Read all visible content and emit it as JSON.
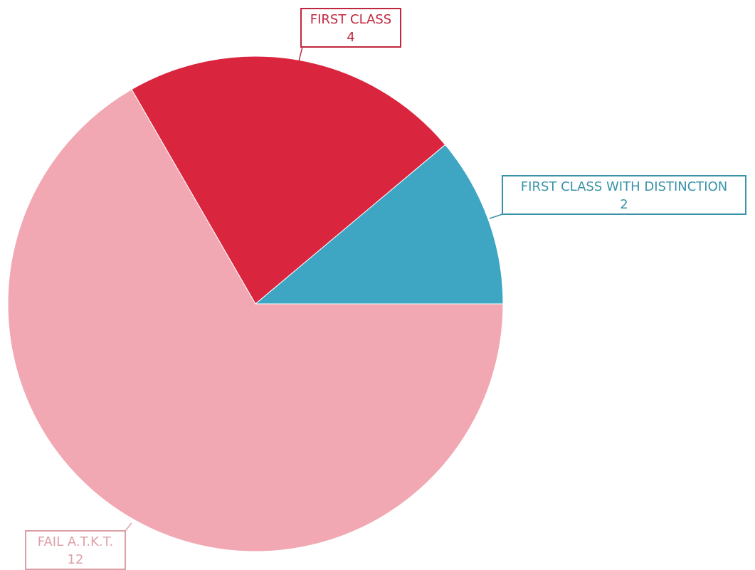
{
  "chart_data": {
    "type": "pie",
    "title": "",
    "start_angle_deg": 0,
    "direction": "counterclockwise-from-right",
    "slices": [
      {
        "label": "FIRST CLASS WITH DISTINCTION",
        "value": 2,
        "color": "#3EA6C3",
        "label_color": "#3A93A8"
      },
      {
        "label": "FIRST CLASS",
        "value": 4,
        "color": "#DA253F",
        "label_color": "#C0273E"
      },
      {
        "label": "FAIL A.T.K.T.",
        "value": 12,
        "color": "#F1A8B2",
        "label_color": "#DCA0A8"
      }
    ]
  }
}
